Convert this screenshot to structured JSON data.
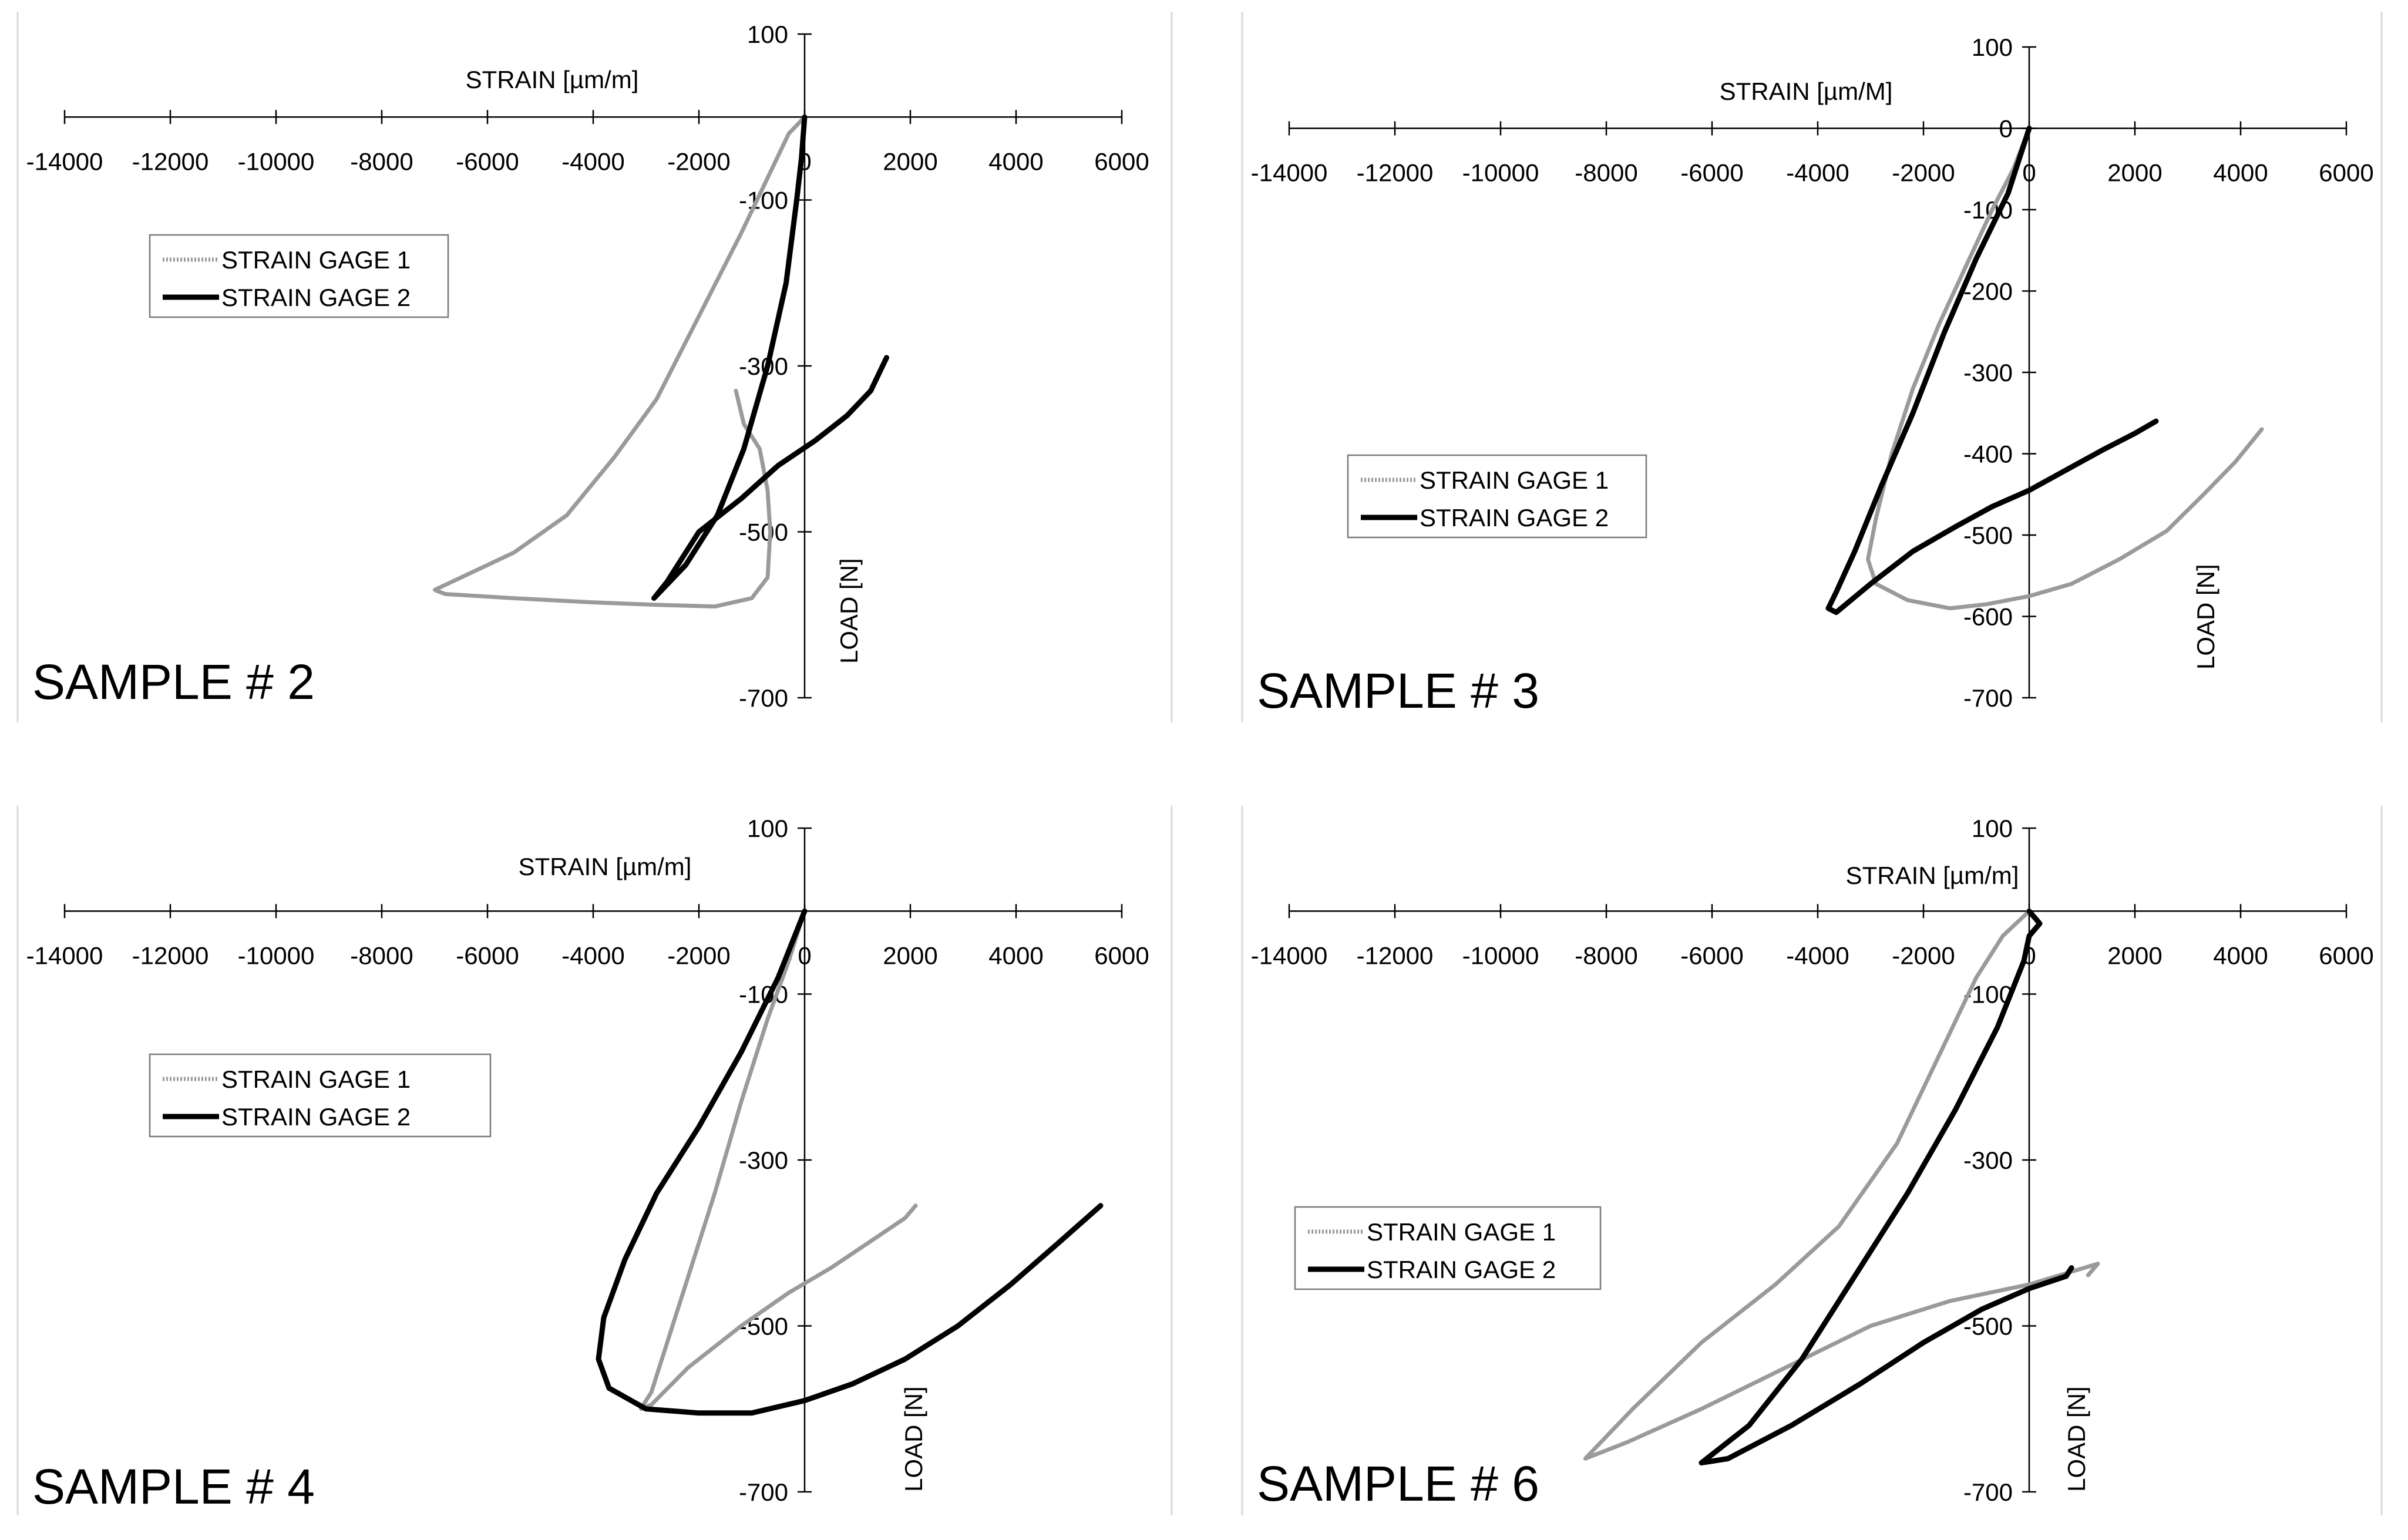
{
  "chart_data": [
    {
      "type": "line",
      "panel_label": "SAMPLE # 2",
      "xlabel": "STRAIN [µm/m]",
      "ylabel": "LOAD [N]",
      "xlim": [
        -14000,
        6000
      ],
      "ylim": [
        -700,
        100
      ],
      "x_ticks": [
        "-14000",
        "-12000",
        "-10000",
        "-8000",
        "-6000",
        "-4000",
        "-2000",
        "0",
        "2000",
        "4000",
        "6000"
      ],
      "y_ticks": [
        "100",
        "-100",
        "-300",
        "-500",
        "-700"
      ],
      "legend_position": "left",
      "series": [
        {
          "name": "STRAIN GAGE 1",
          "style": "dotted",
          "color": "#9a9a9a",
          "points": [
            [
              0,
              0
            ],
            [
              -300,
              -20
            ],
            [
              -600,
              -60
            ],
            [
              -1200,
              -140
            ],
            [
              -2000,
              -240
            ],
            [
              -2800,
              -340
            ],
            [
              -3600,
              -410
            ],
            [
              -4500,
              -480
            ],
            [
              -5500,
              -525
            ],
            [
              -6500,
              -555
            ],
            [
              -7000,
              -570
            ],
            [
              -6800,
              -575
            ],
            [
              -5500,
              -580
            ],
            [
              -4000,
              -585
            ],
            [
              -2800,
              -588
            ],
            [
              -1700,
              -590
            ],
            [
              -1000,
              -580
            ],
            [
              -700,
              -555
            ],
            [
              -650,
              -500
            ],
            [
              -700,
              -450
            ],
            [
              -850,
              -400
            ],
            [
              -1150,
              -370
            ],
            [
              -1300,
              -330
            ]
          ]
        },
        {
          "name": "STRAIN GAGE 2",
          "style": "solid",
          "color": "#000000",
          "points": [
            [
              0,
              0
            ],
            [
              -60,
              -50
            ],
            [
              -150,
              -100
            ],
            [
              -350,
              -200
            ],
            [
              -700,
              -300
            ],
            [
              -1150,
              -400
            ],
            [
              -1650,
              -480
            ],
            [
              -2250,
              -540
            ],
            [
              -2850,
              -580
            ],
            [
              -2600,
              -560
            ],
            [
              -2000,
              -500
            ],
            [
              -1200,
              -460
            ],
            [
              -500,
              -420
            ],
            [
              200,
              -390
            ],
            [
              800,
              -360
            ],
            [
              1250,
              -330
            ],
            [
              1550,
              -290
            ]
          ]
        }
      ]
    },
    {
      "type": "line",
      "panel_label": "SAMPLE # 3",
      "xlabel": "STRAIN [µm/M]",
      "ylabel": "LOAD [N]",
      "xlim": [
        -14000,
        6000
      ],
      "ylim": [
        -700,
        100
      ],
      "x_ticks": [
        "-14000",
        "-12000",
        "-10000",
        "-8000",
        "-6000",
        "-4000",
        "-2000",
        "0",
        "2000",
        "4000",
        "6000"
      ],
      "y_ticks": [
        "100",
        "0",
        "-100",
        "-200",
        "-300",
        "-400",
        "-500",
        "-600",
        "-700"
      ],
      "legend_position": "left",
      "series": [
        {
          "name": "STRAIN GAGE 1",
          "style": "dotted",
          "color": "#9a9a9a",
          "points": [
            [
              0,
              0
            ],
            [
              -300,
              -50
            ],
            [
              -700,
              -100
            ],
            [
              -1200,
              -170
            ],
            [
              -1700,
              -240
            ],
            [
              -2200,
              -320
            ],
            [
              -2600,
              -400
            ],
            [
              -2900,
              -480
            ],
            [
              -3050,
              -530
            ],
            [
              -2900,
              -560
            ],
            [
              -2300,
              -580
            ],
            [
              -1500,
              -590
            ],
            [
              -800,
              -585
            ],
            [
              0,
              -575
            ],
            [
              800,
              -560
            ],
            [
              1700,
              -530
            ],
            [
              2600,
              -495
            ],
            [
              3300,
              -450
            ],
            [
              3900,
              -410
            ],
            [
              4400,
              -370
            ]
          ]
        },
        {
          "name": "STRAIN GAGE 2",
          "style": "solid",
          "color": "#000000",
          "points": [
            [
              0,
              0
            ],
            [
              -400,
              -80
            ],
            [
              -1000,
              -160
            ],
            [
              -1600,
              -250
            ],
            [
              -2200,
              -350
            ],
            [
              -2800,
              -440
            ],
            [
              -3300,
              -520
            ],
            [
              -3650,
              -570
            ],
            [
              -3800,
              -590
            ],
            [
              -3650,
              -595
            ],
            [
              -3000,
              -560
            ],
            [
              -2200,
              -520
            ],
            [
              -1400,
              -490
            ],
            [
              -700,
              -465
            ],
            [
              0,
              -445
            ],
            [
              700,
              -420
            ],
            [
              1400,
              -395
            ],
            [
              2000,
              -375
            ],
            [
              2400,
              -360
            ]
          ]
        }
      ]
    },
    {
      "type": "line",
      "panel_label": "SAMPLE # 4",
      "xlabel": "STRAIN [µm/m]",
      "ylabel": "LOAD [N]",
      "xlim": [
        -14000,
        6000
      ],
      "ylim": [
        -700,
        100
      ],
      "x_ticks": [
        "-14000",
        "-12000",
        "-10000",
        "-8000",
        "-6000",
        "-4000",
        "-2000",
        "0",
        "2000",
        "4000",
        "6000"
      ],
      "y_ticks": [
        "100",
        "-100",
        "-300",
        "-500",
        "-700"
      ],
      "legend_position": "left",
      "series": [
        {
          "name": "STRAIN GAGE 1",
          "style": "dotted",
          "color": "#9a9a9a",
          "points": [
            [
              0,
              0
            ],
            [
              -300,
              -60
            ],
            [
              -700,
              -130
            ],
            [
              -1200,
              -230
            ],
            [
              -1700,
              -340
            ],
            [
              -2200,
              -440
            ],
            [
              -2600,
              -520
            ],
            [
              -2900,
              -580
            ],
            [
              -3100,
              -600
            ],
            [
              -2900,
              -595
            ],
            [
              -2200,
              -550
            ],
            [
              -1200,
              -500
            ],
            [
              -300,
              -460
            ],
            [
              500,
              -430
            ],
            [
              1200,
              -400
            ],
            [
              1900,
              -370
            ],
            [
              2100,
              -355
            ]
          ]
        },
        {
          "name": "STRAIN GAGE 2",
          "style": "solid",
          "color": "#000000",
          "points": [
            [
              0,
              0
            ],
            [
              -500,
              -80
            ],
            [
              -1200,
              -170
            ],
            [
              -2000,
              -260
            ],
            [
              -2800,
              -340
            ],
            [
              -3400,
              -420
            ],
            [
              -3800,
              -490
            ],
            [
              -3900,
              -540
            ],
            [
              -3700,
              -575
            ],
            [
              -3000,
              -600
            ],
            [
              -2000,
              -605
            ],
            [
              -1000,
              -605
            ],
            [
              0,
              -590
            ],
            [
              900,
              -570
            ],
            [
              1900,
              -540
            ],
            [
              2900,
              -500
            ],
            [
              3900,
              -450
            ],
            [
              4800,
              -400
            ],
            [
              5600,
              -355
            ]
          ]
        }
      ]
    },
    {
      "type": "line",
      "panel_label": "SAMPLE # 6",
      "xlabel": "STRAIN [µm/m]",
      "ylabel": "LOAD [N]",
      "xlim": [
        -14000,
        6000
      ],
      "ylim": [
        -700,
        100
      ],
      "x_ticks": [
        "-14000",
        "-12000",
        "-10000",
        "-8000",
        "-6000",
        "-4000",
        "-2000",
        "0",
        "2000",
        "4000",
        "6000"
      ],
      "y_ticks": [
        "100",
        "-100",
        "-300",
        "-500",
        "-700"
      ],
      "legend_position": "left",
      "series": [
        {
          "name": "STRAIN GAGE 1",
          "style": "dotted",
          "color": "#9a9a9a",
          "points": [
            [
              0,
              0
            ],
            [
              -500,
              -30
            ],
            [
              -1000,
              -80
            ],
            [
              -1600,
              -160
            ],
            [
              -2500,
              -280
            ],
            [
              -3600,
              -380
            ],
            [
              -4800,
              -450
            ],
            [
              -6200,
              -520
            ],
            [
              -7500,
              -600
            ],
            [
              -8400,
              -660
            ],
            [
              -7600,
              -640
            ],
            [
              -6200,
              -600
            ],
            [
              -4600,
              -550
            ],
            [
              -3000,
              -500
            ],
            [
              -1500,
              -470
            ],
            [
              0,
              -450
            ],
            [
              1300,
              -425
            ],
            [
              1100,
              -440
            ]
          ]
        },
        {
          "name": "STRAIN GAGE 2",
          "style": "solid",
          "color": "#000000",
          "points": [
            [
              0,
              0
            ],
            [
              200,
              -15
            ],
            [
              0,
              -30
            ],
            [
              -100,
              -60
            ],
            [
              -600,
              -140
            ],
            [
              -1400,
              -240
            ],
            [
              -2300,
              -340
            ],
            [
              -3300,
              -440
            ],
            [
              -4300,
              -540
            ],
            [
              -5300,
              -620
            ],
            [
              -6200,
              -665
            ],
            [
              -5700,
              -660
            ],
            [
              -4500,
              -620
            ],
            [
              -3200,
              -570
            ],
            [
              -2000,
              -520
            ],
            [
              -900,
              -480
            ],
            [
              0,
              -455
            ],
            [
              700,
              -440
            ],
            [
              800,
              -430
            ]
          ]
        }
      ]
    }
  ]
}
